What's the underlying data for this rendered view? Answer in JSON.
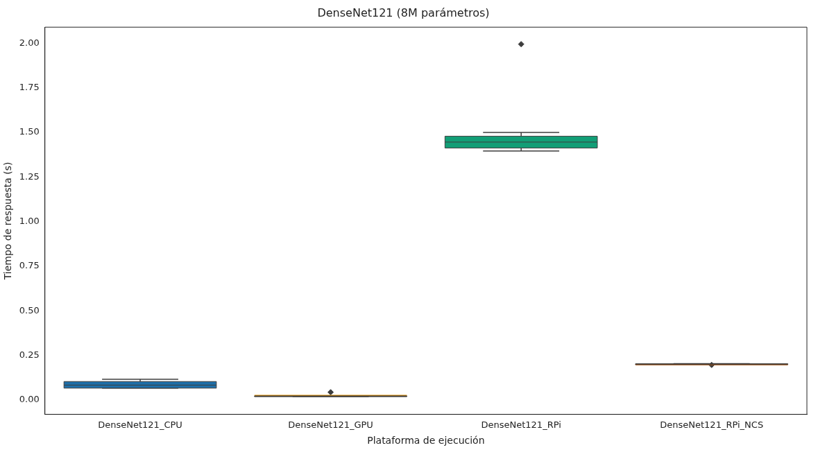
{
  "chart_data": {
    "type": "box",
    "title": "DenseNet121 (8M parámetros)",
    "xlabel": "Plataforma de ejecución",
    "ylabel": "Tiempo de respuesta (s)",
    "categories": [
      "DenseNet121_CPU",
      "DenseNet121_GPU",
      "DenseNet121_RPi",
      "DenseNet121_RPi_NCS"
    ],
    "colors": [
      "#1f6fa8",
      "#de8f05",
      "#129e76",
      "#d55e00"
    ],
    "boxes": [
      {
        "low": 0.067,
        "q1": 0.067,
        "median": 0.084,
        "q3": 0.104,
        "high": 0.117
      },
      {
        "low": 0.02,
        "q1": 0.021,
        "median": 0.022,
        "q3": 0.023,
        "high": 0.024,
        "outliers": [
          0.044
        ]
      },
      {
        "low": 1.396,
        "q1": 1.413,
        "median": 1.446,
        "q3": 1.479,
        "high": 1.5,
        "outliers": [
          1.995
        ]
      },
      {
        "low": 0.202,
        "q1": 0.203,
        "median": 0.203,
        "q3": 0.203,
        "high": 0.204,
        "outliers": [
          0.197
        ]
      }
    ],
    "ylim": [
      -0.08,
      2.09
    ],
    "yticks": [
      {
        "value": 0,
        "label": "0.00"
      },
      {
        "value": 0.25,
        "label": "0.25"
      },
      {
        "value": 0.5,
        "label": "0.50"
      },
      {
        "value": 0.75,
        "label": "0.75"
      },
      {
        "value": 1,
        "label": "1.00"
      },
      {
        "value": 1.25,
        "label": "1.25"
      },
      {
        "value": 1.5,
        "label": "1.50"
      },
      {
        "value": 1.75,
        "label": "1.75"
      },
      {
        "value": 2,
        "label": "2.00"
      }
    ],
    "grid": false,
    "legend": false
  }
}
